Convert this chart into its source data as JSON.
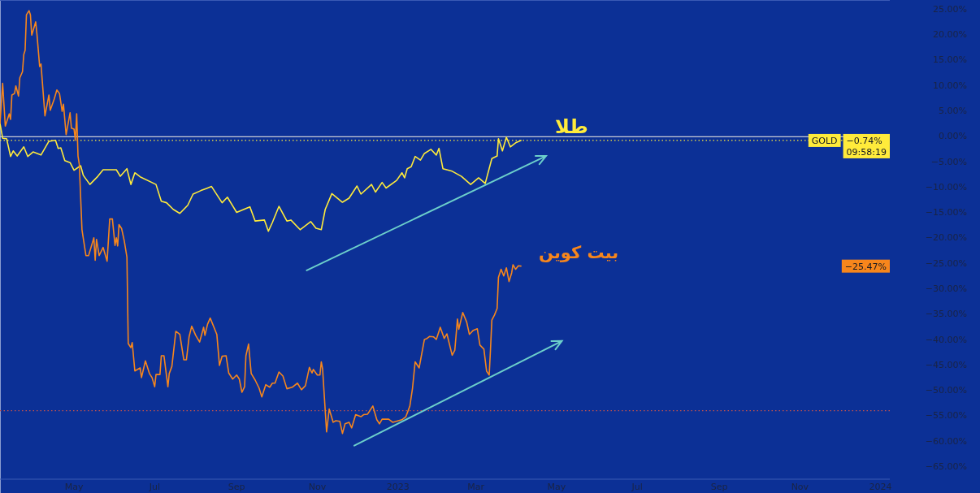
{
  "chart_data": {
    "type": "line",
    "xlim": [
      "2022-03-06",
      "2024-01-08"
    ],
    "xticks": [
      {
        "value": "2022-05-01",
        "label": "May"
      },
      {
        "value": "2022-07-01",
        "label": "Jul"
      },
      {
        "value": "2022-09-01",
        "label": "Sep"
      },
      {
        "value": "2022-11-01",
        "label": "Nov"
      },
      {
        "value": "2023-01-01",
        "label": "2023"
      },
      {
        "value": "2023-03-01",
        "label": "Mar"
      },
      {
        "value": "2023-05-01",
        "label": "May"
      },
      {
        "value": "2023-07-01",
        "label": "Jul"
      },
      {
        "value": "2023-09-01",
        "label": "Sep"
      },
      {
        "value": "2023-11-01",
        "label": "Nov"
      },
      {
        "value": "2024-01-01",
        "label": "2024"
      }
    ],
    "ylim": [
      -67.4,
      26.9
    ],
    "yticks": [
      {
        "value": 25,
        "label": "25.00%"
      },
      {
        "value": 20,
        "label": "20.00%"
      },
      {
        "value": 15,
        "label": "15.00%"
      },
      {
        "value": 10,
        "label": "10.00%"
      },
      {
        "value": 5,
        "label": "5.00%"
      },
      {
        "value": 0,
        "label": "0.00%"
      },
      {
        "value": -5,
        "label": "−5.00%"
      },
      {
        "value": -10,
        "label": "−10.00%"
      },
      {
        "value": -15,
        "label": "−15.00%"
      },
      {
        "value": -20,
        "label": "−20.00%"
      },
      {
        "value": -25,
        "label": "−25.00%"
      },
      {
        "value": -30,
        "label": "−30.00%"
      },
      {
        "value": -35,
        "label": "−35.00%"
      },
      {
        "value": -40,
        "label": "−40.00%"
      },
      {
        "value": -45,
        "label": "−45.00%"
      },
      {
        "value": -50,
        "label": "−50.00%"
      },
      {
        "value": -55,
        "label": "−55.00%"
      },
      {
        "value": -60,
        "label": "−60.00%"
      },
      {
        "value": -65,
        "label": "−65.00%"
      }
    ],
    "series": [
      {
        "name": "طلا",
        "color": "#ffeb3b",
        "x": [
          "2022-03-06",
          "2022-03-08",
          "2022-03-11",
          "2022-03-14",
          "2022-03-16",
          "2022-03-19",
          "2022-03-24",
          "2022-03-27",
          "2022-03-31",
          "2022-04-06",
          "2022-04-12",
          "2022-04-17",
          "2022-04-19",
          "2022-04-21",
          "2022-04-24",
          "2022-04-28",
          "2022-05-01",
          "2022-05-06",
          "2022-05-08",
          "2022-05-13",
          "2022-05-16",
          "2022-05-19",
          "2022-05-23",
          "2022-06-02",
          "2022-06-05",
          "2022-06-10",
          "2022-06-13",
          "2022-06-16",
          "2022-06-20",
          "2022-07-02",
          "2022-07-06",
          "2022-07-10",
          "2022-07-15",
          "2022-07-20",
          "2022-07-26",
          "2022-07-30",
          "2022-08-05",
          "2022-08-13",
          "2022-08-21",
          "2022-08-25",
          "2022-09-01",
          "2022-09-11",
          "2022-09-15",
          "2022-09-22",
          "2022-09-25",
          "2022-09-28",
          "2022-10-03",
          "2022-10-09",
          "2022-10-12",
          "2022-10-19",
          "2022-10-27",
          "2022-10-31",
          "2022-11-04",
          "2022-11-07",
          "2022-11-12",
          "2022-11-20",
          "2022-11-25",
          "2022-12-01",
          "2022-12-04",
          "2022-12-12",
          "2022-12-15",
          "2022-12-20",
          "2022-12-23",
          "2022-12-31",
          "2023-01-04",
          "2023-01-06",
          "2023-01-08",
          "2023-01-11",
          "2023-01-14",
          "2023-01-18",
          "2023-01-21",
          "2023-01-26",
          "2023-01-30",
          "2023-02-01",
          "2023-02-04",
          "2023-02-11",
          "2023-02-18",
          "2023-02-25",
          "2023-03-03",
          "2023-03-08",
          "2023-03-13",
          "2023-03-17",
          "2023-03-18",
          "2023-03-21",
          "2023-03-24",
          "2023-03-27",
          "2023-03-31",
          "2023-04-04"
        ],
        "values": [
          2.6,
          -0.3,
          -0.4,
          -3.9,
          -2.8,
          -3.8,
          -2.0,
          -3.9,
          -3.0,
          -3.6,
          -0.9,
          -0.7,
          -2.3,
          -2.2,
          -4.7,
          -5.1,
          -6.6,
          -5.7,
          -7.6,
          -9.4,
          -8.6,
          -7.8,
          -6.5,
          -6.5,
          -7.8,
          -6.3,
          -9.4,
          -7.1,
          -7.9,
          -9.4,
          -12.7,
          -13.0,
          -14.3,
          -15.1,
          -13.5,
          -11.3,
          -10.6,
          -9.8,
          -13.0,
          -11.9,
          -14.9,
          -13.8,
          -16.6,
          -16.4,
          -18.6,
          -16.9,
          -13.7,
          -16.6,
          -16.4,
          -18.3,
          -16.7,
          -18.0,
          -18.3,
          -14.3,
          -11.2,
          -12.9,
          -12.1,
          -9.7,
          -11.3,
          -9.4,
          -10.9,
          -9.0,
          -10.1,
          -8.6,
          -7.1,
          -8.1,
          -6.3,
          -5.9,
          -3.9,
          -4.6,
          -3.3,
          -2.5,
          -3.6,
          -2.3,
          -6.3,
          -6.8,
          -7.8,
          -9.4,
          -8.1,
          -9.2,
          -4.3,
          -3.8,
          -0.4,
          -2.8,
          -0.1,
          -2.0,
          -1.2,
          -0.74
        ]
      },
      {
        "name": "بیت کوین",
        "color": "#f7861c",
        "x": [
          "2022-03-06",
          "2022-03-08",
          "2022-03-10",
          "2022-03-13",
          "2022-03-14",
          "2022-03-15",
          "2022-03-17",
          "2022-03-18",
          "2022-03-20",
          "2022-03-21",
          "2022-03-23",
          "2022-03-24",
          "2022-03-25",
          "2022-03-26",
          "2022-03-28",
          "2022-03-29",
          "2022-03-30",
          "2022-04-02",
          "2022-04-03",
          "2022-04-05",
          "2022-04-06",
          "2022-04-09",
          "2022-04-12",
          "2022-04-13",
          "2022-04-16",
          "2022-04-18",
          "2022-04-20",
          "2022-04-22",
          "2022-04-23",
          "2022-04-25",
          "2022-04-28",
          "2022-04-29",
          "2022-05-01",
          "2022-05-02",
          "2022-05-03",
          "2022-05-04",
          "2022-05-05",
          "2022-05-07",
          "2022-05-10",
          "2022-05-12",
          "2022-05-16",
          "2022-05-17",
          "2022-05-18",
          "2022-05-20",
          "2022-05-23",
          "2022-05-26",
          "2022-05-28",
          "2022-05-30",
          "2022-06-01",
          "2022-06-02",
          "2022-06-03",
          "2022-06-04",
          "2022-06-06",
          "2022-06-08",
          "2022-06-10",
          "2022-06-11",
          "2022-06-13",
          "2022-06-14",
          "2022-06-16",
          "2022-06-20",
          "2022-06-21",
          "2022-06-24",
          "2022-06-27",
          "2022-06-29",
          "2022-07-01",
          "2022-07-02",
          "2022-07-05",
          "2022-07-06",
          "2022-07-08",
          "2022-07-11",
          "2022-07-12",
          "2022-07-14",
          "2022-07-17",
          "2022-07-20",
          "2022-07-23",
          "2022-07-25",
          "2022-07-27",
          "2022-07-29",
          "2022-08-01",
          "2022-08-04",
          "2022-08-07",
          "2022-08-08",
          "2022-08-10",
          "2022-08-12",
          "2022-08-17",
          "2022-08-19",
          "2022-08-21",
          "2022-08-24",
          "2022-08-26",
          "2022-08-29",
          "2022-09-01",
          "2022-09-03",
          "2022-09-05",
          "2022-09-07",
          "2022-09-08",
          "2022-09-10",
          "2022-09-12",
          "2022-09-15",
          "2022-09-18",
          "2022-09-20",
          "2022-09-23",
          "2022-09-26",
          "2022-09-28",
          "2022-09-30",
          "2022-10-03",
          "2022-10-06",
          "2022-10-09",
          "2022-10-13",
          "2022-10-17",
          "2022-10-20",
          "2022-10-23",
          "2022-10-26",
          "2022-10-28",
          "2022-10-29",
          "2022-11-01",
          "2022-11-03",
          "2022-11-04",
          "2022-11-05",
          "2022-11-08",
          "2022-11-10",
          "2022-11-13",
          "2022-11-15",
          "2022-11-18",
          "2022-11-20",
          "2022-11-22",
          "2022-11-25",
          "2022-11-27",
          "2022-11-30",
          "2022-12-04",
          "2022-12-06",
          "2022-12-09",
          "2022-12-13",
          "2022-12-16",
          "2022-12-18",
          "2022-12-20",
          "2022-12-25",
          "2022-12-28",
          "2023-01-04",
          "2023-01-07",
          "2023-01-10",
          "2023-01-12",
          "2023-01-14",
          "2023-01-17",
          "2023-01-21",
          "2023-01-23",
          "2023-01-25",
          "2023-01-28",
          "2023-01-30",
          "2023-02-02",
          "2023-02-05",
          "2023-02-07",
          "2023-02-11",
          "2023-02-13",
          "2023-02-15",
          "2023-02-16",
          "2023-02-19",
          "2023-02-22",
          "2023-02-24",
          "2023-02-27",
          "2023-03-02",
          "2023-03-04",
          "2023-03-07",
          "2023-03-09",
          "2023-03-11",
          "2023-03-12",
          "2023-03-13",
          "2023-03-15",
          "2023-03-17",
          "2023-03-18",
          "2023-03-20",
          "2023-03-22",
          "2023-03-24",
          "2023-03-26",
          "2023-03-28",
          "2023-03-29",
          "2023-03-31",
          "2023-04-02",
          "2023-04-04"
        ],
        "values": [
          2.6,
          10.5,
          2.1,
          4.5,
          3.4,
          8.2,
          8.5,
          10.0,
          8.0,
          11.6,
          12.8,
          16.2,
          17.0,
          24.0,
          24.8,
          24.0,
          20.0,
          22.6,
          20.0,
          13.8,
          14.3,
          4.1,
          8.2,
          5.2,
          7.4,
          9.2,
          8.5,
          5.0,
          6.4,
          0.4,
          4.7,
          1.7,
          1.5,
          -0.7,
          4.5,
          -3.8,
          -5.5,
          -18.3,
          -23.4,
          -23.4,
          -19.9,
          -24.3,
          -20.2,
          -23.4,
          -21.8,
          -24.5,
          -16.2,
          -16.2,
          -21.4,
          -19.9,
          -21.5,
          -17.3,
          -18.1,
          -20.5,
          -23.7,
          -40.7,
          -41.5,
          -40.5,
          -46.1,
          -45.5,
          -47.4,
          -44.1,
          -46.6,
          -47.4,
          -49.2,
          -46.8,
          -46.8,
          -43.1,
          -43.1,
          -49.2,
          -46.6,
          -45.2,
          -38.3,
          -38.9,
          -43.9,
          -43.9,
          -39.4,
          -37.3,
          -39.1,
          -40.4,
          -37.5,
          -39.1,
          -36.9,
          -35.7,
          -38.9,
          -45.0,
          -43.2,
          -43.1,
          -46.5,
          -47.7,
          -46.9,
          -47.7,
          -50.3,
          -49.2,
          -43.1,
          -40.8,
          -46.6,
          -47.9,
          -49.5,
          -51.2,
          -48.8,
          -49.3,
          -48.5,
          -48.5,
          -46.3,
          -47.1,
          -49.6,
          -49.3,
          -48.5,
          -49.8,
          -49.0,
          -45.4,
          -46.5,
          -45.8,
          -46.9,
          -46.9,
          -44.3,
          -45.7,
          -58.1,
          -53.6,
          -56.2,
          -55.9,
          -56.0,
          -58.4,
          -56.5,
          -56.2,
          -57.3,
          -54.7,
          -55.1,
          -54.7,
          -54.6,
          -53.0,
          -55.7,
          -56.5,
          -55.6,
          -55.6,
          -56.2,
          -55.7,
          -55.1,
          -53.0,
          -49.5,
          -44.3,
          -45.5,
          -39.9,
          -39.7,
          -39.3,
          -39.4,
          -39.9,
          -37.5,
          -39.7,
          -38.8,
          -43.0,
          -42.0,
          -35.9,
          -37.9,
          -34.6,
          -36.5,
          -38.9,
          -38.1,
          -37.8,
          -41.0,
          -41.8,
          -46.1,
          -46.9,
          -41.8,
          -36.1,
          -35.1,
          -33.8,
          -27.7,
          -26.1,
          -27.4,
          -25.8,
          -28.5,
          -26.8,
          -25.2,
          -26.1,
          -25.4,
          -25.47
        ]
      }
    ],
    "ref_lines": [
      {
        "axis": "y",
        "value": 0,
        "color": "#c9ccd6",
        "line_style": "solid"
      },
      {
        "axis": "y",
        "value": -0.74,
        "color": "#ffeb3b",
        "line_style": "dotted"
      },
      {
        "axis": "y",
        "value": -53.9,
        "color": "#c0504d",
        "line_style": "dotted"
      }
    ],
    "annotations": [
      "GOLD",
      "−0.74%",
      "09:58:19",
      "−25.47%"
    ]
  }
}
